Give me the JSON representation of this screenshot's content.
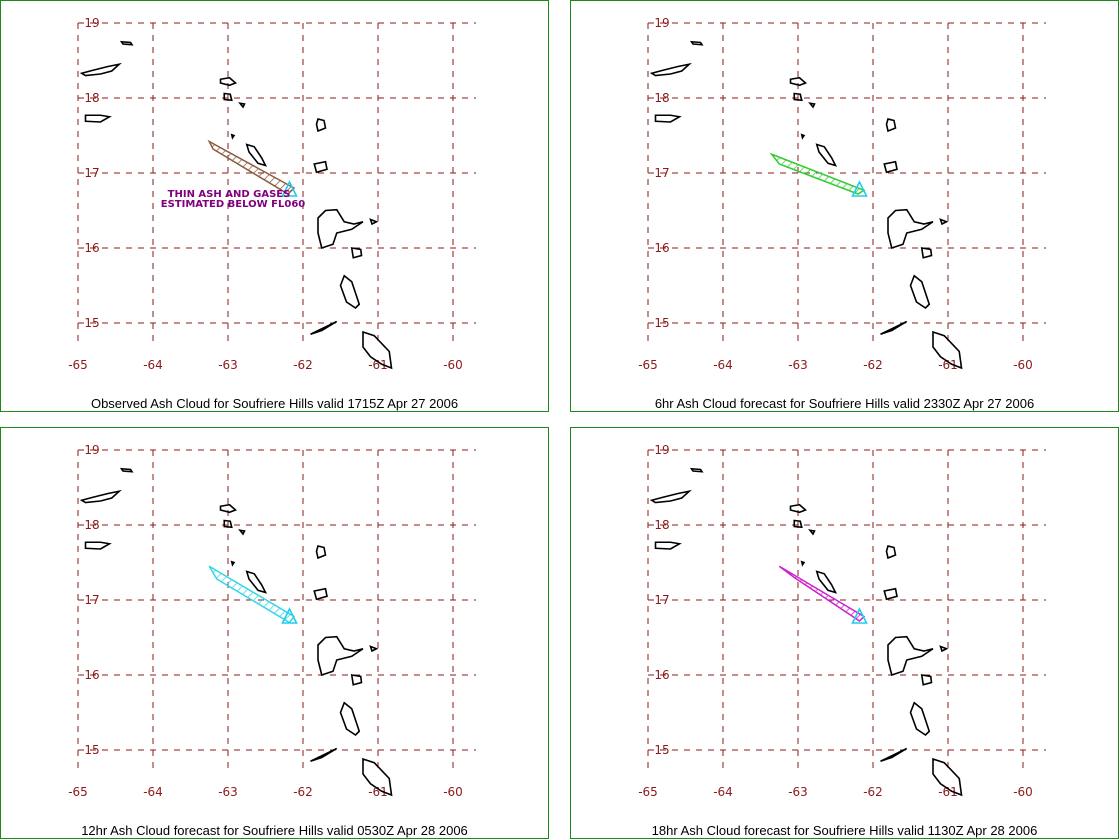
{
  "map": {
    "lon_ticks": [
      -65,
      -64,
      -63,
      -62,
      -61,
      -60
    ],
    "lat_ticks": [
      19,
      18,
      17,
      16,
      15
    ],
    "volcano_icon": "triangle-volcano-icon",
    "grid_color": "#8b1a1a",
    "border_color": "#1a8a1a"
  },
  "panels": [
    {
      "caption": "Observed Ash Cloud for Soufriere  Hills valid 1715Z Apr 27 2006",
      "cloud_color": "#8b5a3c",
      "note_line1": "THIN ASH AND GASES",
      "note_line2": "ESTIMATED BELOW FL060"
    },
    {
      "caption": "6hr Ash Cloud forecast for Soufriere  Hills valid 2330Z Apr 27 2006",
      "cloud_color": "#33cc33"
    },
    {
      "caption": "12hr Ash Cloud forecast for Soufriere  Hills valid 0530Z Apr 28 2006",
      "cloud_color": "#33d6e6"
    },
    {
      "caption": "18hr Ash Cloud forecast for Soufriere  Hills valid 1130Z Apr 28 2006",
      "cloud_color": "#cc22cc"
    }
  ]
}
